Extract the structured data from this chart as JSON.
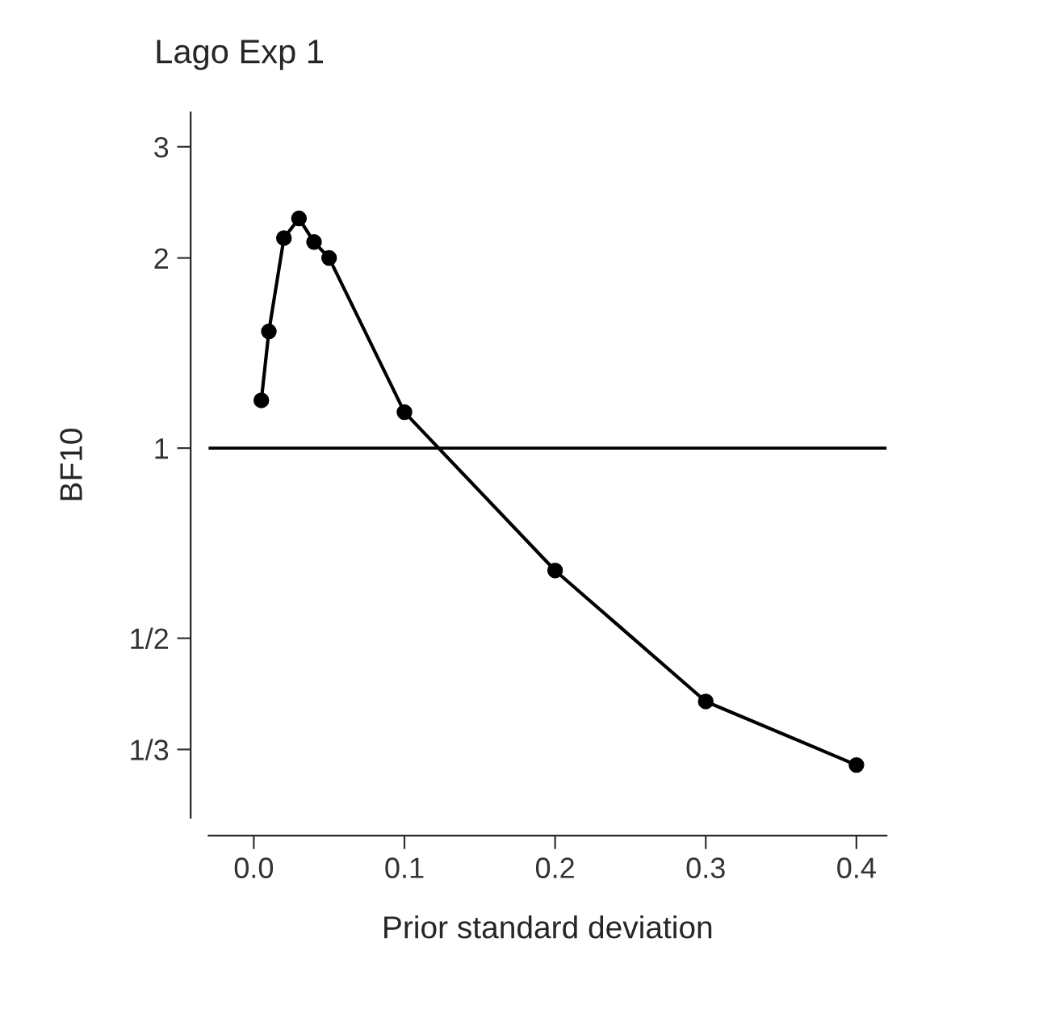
{
  "chart_data": {
    "type": "line",
    "title": "Lago Exp 1",
    "xlabel": "Prior standard deviation",
    "ylabel": "BF10",
    "x": [
      0.005,
      0.01,
      0.02,
      0.03,
      0.04,
      0.05,
      0.1,
      0.2,
      0.3,
      0.4
    ],
    "series": [
      {
        "color": "#000000",
        "values": [
          1.19,
          1.53,
          2.15,
          2.31,
          2.12,
          2.0,
          1.14,
          0.64,
          0.397,
          0.315
        ]
      }
    ],
    "log": "y",
    "xlim": [
      -0.03,
      0.42
    ],
    "ylim": [
      0.26,
      3.4
    ],
    "xticks": [
      {
        "value": 0,
        "label": "0.0"
      },
      0.1,
      0.2,
      0.3,
      0.4
    ],
    "yticks": [
      {
        "value": 0.3333,
        "label": "1/3"
      },
      {
        "value": 0.5,
        "label": "1/2"
      },
      1,
      2,
      3
    ],
    "ref_lines": [
      {
        "axis": "y",
        "value": 1,
        "color": "#000000"
      }
    ],
    "marker": "circle",
    "line_style": "solid",
    "grid": false,
    "legend": false
  }
}
